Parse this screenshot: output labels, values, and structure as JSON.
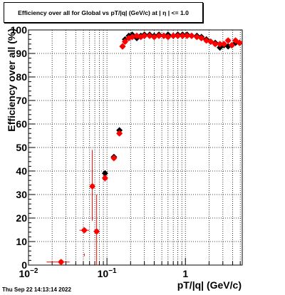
{
  "chart_data": {
    "type": "scatter",
    "title": "Efficiency over all for Global vs pT/|q| (GeV/c) at |  η | <= 1.0",
    "xlabel": "pT/|q| (GeV/c)",
    "ylabel": "Efficiency over all (%)",
    "xscale": "log",
    "xlim": [
      0.01,
      5.3
    ],
    "ylim": [
      0,
      100
    ],
    "grid": true,
    "x_ticks": [
      {
        "v": 0.01,
        "base": "10",
        "exp": "−2"
      },
      {
        "v": 0.1,
        "base": "10",
        "exp": "−1"
      },
      {
        "v": 1,
        "base": "1",
        "exp": ""
      }
    ],
    "y_ticks": [
      0,
      10,
      20,
      30,
      40,
      50,
      60,
      70,
      80,
      90,
      100
    ],
    "series": [
      {
        "color": "#000000",
        "marker": "diamond",
        "points": [
          {
            "x": 0.0944,
            "y": 39.0
          },
          {
            "x": 0.1226,
            "y": 46.0
          },
          {
            "x": 0.1441,
            "y": 57.3
          },
          {
            "x": 0.158,
            "y": 93.0
          },
          {
            "x": 0.17,
            "y": 96.0
          },
          {
            "x": 0.19,
            "y": 97.5
          },
          {
            "x": 0.21,
            "y": 98.0
          },
          {
            "x": 0.24,
            "y": 96.5
          },
          {
            "x": 0.27,
            "y": 97.5
          },
          {
            "x": 0.3,
            "y": 98.0
          },
          {
            "x": 0.35,
            "y": 98.0
          },
          {
            "x": 0.4,
            "y": 97.5
          },
          {
            "x": 0.46,
            "y": 98.0
          },
          {
            "x": 0.53,
            "y": 97.5
          },
          {
            "x": 0.6,
            "y": 98.0
          },
          {
            "x": 0.7,
            "y": 97.5
          },
          {
            "x": 0.8,
            "y": 98.0
          },
          {
            "x": 0.92,
            "y": 98.0
          },
          {
            "x": 1.05,
            "y": 98.0
          },
          {
            "x": 1.2,
            "y": 97.5
          },
          {
            "x": 1.4,
            "y": 97.5
          },
          {
            "x": 1.6,
            "y": 97.0
          },
          {
            "x": 1.85,
            "y": 96.0
          },
          {
            "x": 2.1,
            "y": 95.0
          },
          {
            "x": 2.4,
            "y": 94.5
          },
          {
            "x": 2.75,
            "y": 92.5
          },
          {
            "x": 3.1,
            "y": 93.5
          },
          {
            "x": 3.5,
            "y": 93.0
          },
          {
            "x": 3.9,
            "y": 93.5
          },
          {
            "x": 4.35,
            "y": 94.5
          },
          {
            "x": 4.9,
            "y": 94.5
          }
        ]
      },
      {
        "color": "#ff0000",
        "marker": "circle",
        "points": [
          {
            "x": 0.026,
            "y": 1.3,
            "xerr": [
              0.017,
              0.0335
            ],
            "yerr": [
              0,
              1.3
            ]
          },
          {
            "x": 0.0514,
            "y": 14.8,
            "xerr": [
              0.0445,
              0.0593
            ],
            "yerr": [
              3.8,
              4.9
            ]
          },
          {
            "x": 0.0651,
            "y": 33.5,
            "xerr": [
              0.0606,
              0.0699
            ],
            "yerr": [
              18.8,
              49.0
            ]
          },
          {
            "x": 0.0739,
            "y": 14.3,
            "xerr": [
              0.0711,
              0.0768
            ],
            "yerr": [
              0,
              30.0
            ]
          },
          {
            "x": 0.0944,
            "y": 37.0,
            "xerr": [
              0.089,
              0.1001
            ],
            "yerr": [
              35.5,
              38.5
            ]
          },
          {
            "x": 0.1226,
            "y": 45.5,
            "xerr": [
              0.1181,
              0.1272
            ],
            "yerr": [
              44.5,
              46.5
            ]
          },
          {
            "x": 0.1441,
            "y": 56.0,
            "xerr": [
              0.1405,
              0.1478
            ],
            "yerr": [
              55.0,
              57.0
            ]
          },
          {
            "x": 0.158,
            "y": 93.0
          },
          {
            "x": 0.17,
            "y": 95.0
          },
          {
            "x": 0.19,
            "y": 96.5
          },
          {
            "x": 0.21,
            "y": 97.0
          },
          {
            "x": 0.24,
            "y": 97.5
          },
          {
            "x": 0.27,
            "y": 97.0
          },
          {
            "x": 0.3,
            "y": 97.5
          },
          {
            "x": 0.35,
            "y": 97.5
          },
          {
            "x": 0.4,
            "y": 97.0
          },
          {
            "x": 0.46,
            "y": 97.5
          },
          {
            "x": 0.53,
            "y": 97.5
          },
          {
            "x": 0.6,
            "y": 97.0
          },
          {
            "x": 0.7,
            "y": 97.5
          },
          {
            "x": 0.8,
            "y": 97.5
          },
          {
            "x": 0.92,
            "y": 97.5
          },
          {
            "x": 1.05,
            "y": 97.5
          },
          {
            "x": 1.2,
            "y": 97.5
          },
          {
            "x": 1.4,
            "y": 97.0
          },
          {
            "x": 1.6,
            "y": 96.5
          },
          {
            "x": 1.85,
            "y": 95.5
          },
          {
            "x": 2.1,
            "y": 95.0
          },
          {
            "x": 2.4,
            "y": 94.0
          },
          {
            "x": 2.75,
            "y": 94.0
          },
          {
            "x": 3.1,
            "y": 94.0
          },
          {
            "x": 3.5,
            "y": 95.5
          },
          {
            "x": 3.9,
            "y": 93.5
          },
          {
            "x": 4.35,
            "y": 95.5
          },
          {
            "x": 4.9,
            "y": 94.5
          }
        ]
      }
    ]
  },
  "datestamp": "Thu Sep 22 14:13:14 2022"
}
